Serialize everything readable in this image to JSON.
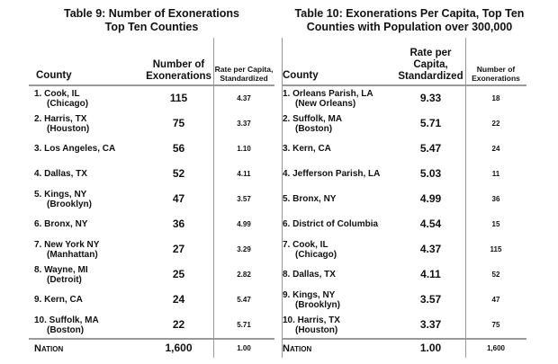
{
  "table9": {
    "title_line1": "Table 9: Number of Exonerations",
    "title_line2": "Top Ten Counties",
    "headers": {
      "county": "County",
      "count": "Number of Exonerations",
      "rate": "Rate per Capita, Standardized"
    },
    "rows": [
      {
        "county": "1. Cook, IL",
        "sub": "(Chicago)",
        "count": "115",
        "rate": "4.37"
      },
      {
        "county": "2.  Harris, TX",
        "sub": "(Houston)",
        "count": "75",
        "rate": "3.37"
      },
      {
        "county": "3. Los Angeles, CA",
        "sub": "",
        "count": "56",
        "rate": "1.10"
      },
      {
        "county": "4. Dallas, TX",
        "sub": "",
        "count": "52",
        "rate": "4.11"
      },
      {
        "county": "5. Kings, NY",
        "sub": "(Brooklyn)",
        "count": "47",
        "rate": "3.57"
      },
      {
        "county": "6. Bronx, NY",
        "sub": "",
        "count": "36",
        "rate": "4.99"
      },
      {
        "county": "7. New York NY",
        "sub": "(Manhattan)",
        "count": "27",
        "rate": "3.29"
      },
      {
        "county": "8. Wayne, MI",
        "sub": "(Detroit)",
        "count": "25",
        "rate": "2.82"
      },
      {
        "county": "9. Kern, CA",
        "sub": "",
        "count": "24",
        "rate": "5.47"
      },
      {
        "county": "10. Suffolk, MA",
        "sub": "(Boston)",
        "count": "22",
        "rate": "5.71"
      }
    ],
    "nation": {
      "label": "Nation",
      "count": "1,600",
      "rate": "1.00"
    }
  },
  "table10": {
    "title_line1": "Table 10: Exonerations Per Capita, Top Ten",
    "title_line2": "Counties with Population over 300,000",
    "headers": {
      "county": "County",
      "rate": "Rate per Capita, Standardized",
      "count": "Number of Exonerations"
    },
    "rows": [
      {
        "county": "1.  Orleans Parish, LA",
        "sub": "(New Orleans)",
        "rate": "9.33",
        "count": "18"
      },
      {
        "county": "2.  Suffolk, MA",
        "sub": "(Boston)",
        "rate": "5.71",
        "count": "22"
      },
      {
        "county": "3.  Kern, CA",
        "sub": "",
        "rate": "5.47",
        "count": "24"
      },
      {
        "county": "4.  Jefferson Parish, LA",
        "sub": "",
        "rate": "5.03",
        "count": "11"
      },
      {
        "county": "5.  Bronx, NY",
        "sub": "",
        "rate": "4.99",
        "count": "36"
      },
      {
        "county": "6.  District of Columbia",
        "sub": "",
        "rate": "4.54",
        "count": "15"
      },
      {
        "county": "7.  Cook, IL",
        "sub": "(Chicago)",
        "rate": "4.37",
        "count": "115"
      },
      {
        "county": "8.  Dallas, TX",
        "sub": "",
        "rate": "4.11",
        "count": "52"
      },
      {
        "county": "9.  Kings, NY",
        "sub": "(Brooklyn)",
        "rate": "3.57",
        "count": "47"
      },
      {
        "county": "10. Harris, TX",
        "sub": "(Houston)",
        "rate": "3.37",
        "count": "75"
      }
    ],
    "nation": {
      "label": "Nation",
      "rate": "1.00",
      "count": "1,600"
    }
  }
}
